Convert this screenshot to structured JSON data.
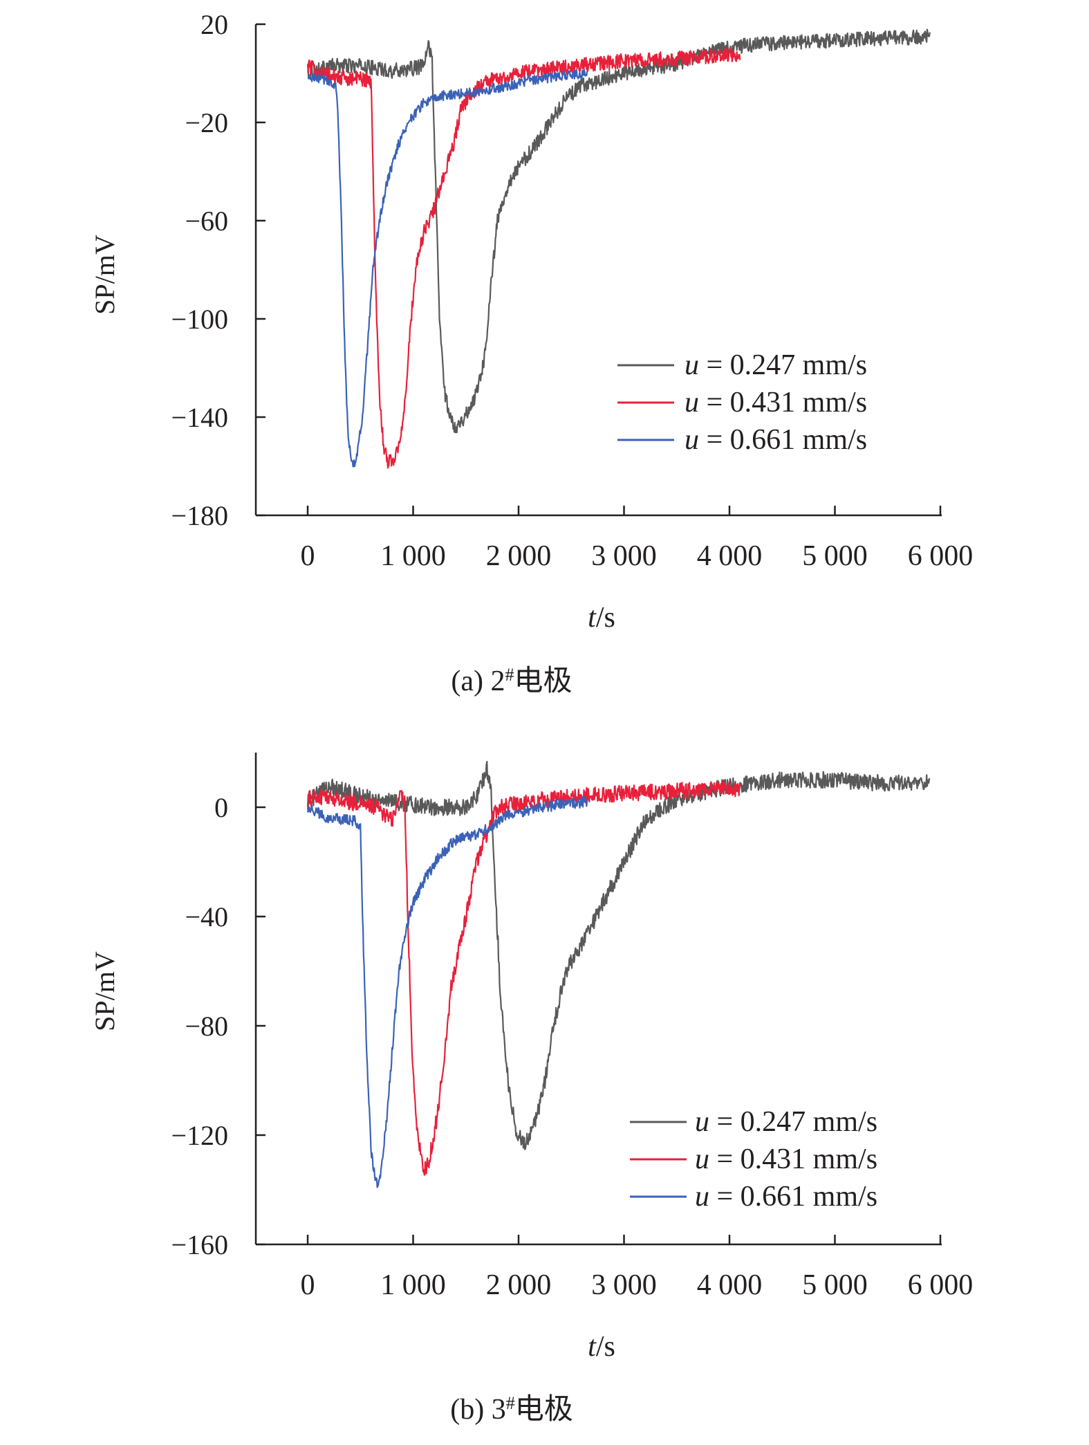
{
  "colors": {
    "series_0": "#595959",
    "series_1": "#e8203a",
    "series_2": "#3a62b6",
    "axis": "#231f20"
  },
  "chart_data": [
    {
      "type": "line",
      "caption": "(a) 2#电极",
      "caption_prefix": "(a) 2",
      "caption_sup": "#",
      "caption_suffix": "电极",
      "xlabel_italic": "t",
      "xlabel_unit": "/s",
      "ylabel": "SP/mV",
      "xlim": [
        -500,
        6000
      ],
      "ylim": [
        -180,
        20
      ],
      "x_ticks": [
        0,
        1000,
        2000,
        3000,
        4000,
        5000,
        6000
      ],
      "x_tick_labels": [
        "0",
        "1 000",
        "2 000",
        "3 000",
        "4 000",
        "5 000",
        "6 000"
      ],
      "y_ticks": [
        20,
        -20,
        -60,
        -100,
        -140,
        -180
      ],
      "y_tick_labels": [
        "20",
        "−20",
        "−60",
        "−100",
        "−140",
        "−180"
      ],
      "legend_position": "right",
      "series": [
        {
          "name": "u = 0.247 mm/s",
          "name_italic": "u",
          "name_rest": " = 0.247 mm/s",
          "noise": 3,
          "points": [
            [
              0,
              0
            ],
            [
              200,
              3
            ],
            [
              500,
              3
            ],
            [
              800,
              1
            ],
            [
              1000,
              2
            ],
            [
              1100,
              3
            ],
            [
              1150,
              12
            ],
            [
              1180,
              5
            ],
            [
              1210,
              -40
            ],
            [
              1250,
              -100
            ],
            [
              1300,
              -130
            ],
            [
              1350,
              -140
            ],
            [
              1400,
              -144
            ],
            [
              1450,
              -142
            ],
            [
              1520,
              -138
            ],
            [
              1600,
              -130
            ],
            [
              1680,
              -115
            ],
            [
              1740,
              -85
            ],
            [
              1800,
              -60
            ],
            [
              1900,
              -45
            ],
            [
              2000,
              -38
            ],
            [
              2150,
              -30
            ],
            [
              2300,
              -20
            ],
            [
              2450,
              -10
            ],
            [
              2600,
              -5
            ],
            [
              3000,
              0
            ],
            [
              3500,
              4
            ],
            [
              3900,
              10
            ],
            [
              4300,
              12
            ],
            [
              4800,
              13
            ],
            [
              5300,
              14
            ],
            [
              5900,
              15
            ]
          ]
        },
        {
          "name": "u = 0.431 mm/s",
          "name_italic": "u",
          "name_rest": " = 0.431 mm/s",
          "noise": 3,
          "points": [
            [
              0,
              3
            ],
            [
              150,
              0
            ],
            [
              300,
              -2
            ],
            [
              500,
              -2
            ],
            [
              600,
              -3
            ],
            [
              610,
              -20
            ],
            [
              640,
              -80
            ],
            [
              680,
              -130
            ],
            [
              720,
              -152
            ],
            [
              760,
              -158
            ],
            [
              820,
              -157
            ],
            [
              880,
              -150
            ],
            [
              940,
              -125
            ],
            [
              980,
              -100
            ],
            [
              1030,
              -78
            ],
            [
              1100,
              -65
            ],
            [
              1200,
              -55
            ],
            [
              1300,
              -40
            ],
            [
              1380,
              -30
            ],
            [
              1450,
              -15
            ],
            [
              1550,
              -8
            ],
            [
              1700,
              -3
            ],
            [
              2000,
              0
            ],
            [
              2500,
              3
            ],
            [
              3000,
              5
            ],
            [
              3500,
              6
            ],
            [
              4100,
              8
            ]
          ]
        },
        {
          "name": "u = 0.661 mm/s",
          "name_italic": "u",
          "name_rest": " = 0.661 mm/s",
          "noise": 2,
          "points": [
            [
              0,
              -2
            ],
            [
              100,
              -2
            ],
            [
              200,
              -3
            ],
            [
              270,
              -6
            ],
            [
              290,
              -20
            ],
            [
              320,
              -60
            ],
            [
              350,
              -110
            ],
            [
              380,
              -145
            ],
            [
              410,
              -157
            ],
            [
              430,
              -160
            ],
            [
              470,
              -155
            ],
            [
              520,
              -140
            ],
            [
              570,
              -110
            ],
            [
              620,
              -80
            ],
            [
              680,
              -60
            ],
            [
              750,
              -45
            ],
            [
              850,
              -30
            ],
            [
              950,
              -20
            ],
            [
              1100,
              -12
            ],
            [
              1300,
              -9
            ],
            [
              1500,
              -8
            ],
            [
              1800,
              -6
            ],
            [
              2100,
              -3
            ],
            [
              2400,
              -1
            ],
            [
              2650,
              0
            ]
          ]
        }
      ]
    },
    {
      "type": "line",
      "caption": "(b) 3#电极",
      "caption_prefix": "(b) 3",
      "caption_sup": "#",
      "caption_suffix": "电极",
      "xlabel_italic": "t",
      "xlabel_unit": "/s",
      "ylabel": "SP/mV",
      "xlim": [
        -500,
        6000
      ],
      "ylim": [
        -160,
        20
      ],
      "x_ticks": [
        0,
        1000,
        2000,
        3000,
        4000,
        5000,
        6000
      ],
      "x_tick_labels": [
        "0",
        "1 000",
        "2 000",
        "3 000",
        "4 000",
        "5 000",
        "6 000"
      ],
      "y_ticks": [
        0,
        -40,
        -80,
        -120,
        -160
      ],
      "y_tick_labels": [
        "0",
        "−40",
        "−80",
        "−120",
        "−160"
      ],
      "legend_position": "bottom-right",
      "series": [
        {
          "name": "u = 0.247 mm/s",
          "name_italic": "u",
          "name_rest": " = 0.247 mm/s",
          "noise": 3,
          "points": [
            [
              0,
              2
            ],
            [
              200,
              8
            ],
            [
              500,
              4
            ],
            [
              800,
              2
            ],
            [
              1200,
              0
            ],
            [
              1500,
              0
            ],
            [
              1620,
              5
            ],
            [
              1700,
              14
            ],
            [
              1740,
              5
            ],
            [
              1780,
              -30
            ],
            [
              1830,
              -70
            ],
            [
              1900,
              -100
            ],
            [
              1970,
              -118
            ],
            [
              2050,
              -123
            ],
            [
              2130,
              -118
            ],
            [
              2230,
              -105
            ],
            [
              2330,
              -80
            ],
            [
              2450,
              -60
            ],
            [
              2600,
              -50
            ],
            [
              2800,
              -35
            ],
            [
              3000,
              -20
            ],
            [
              3200,
              -5
            ],
            [
              3500,
              3
            ],
            [
              4000,
              8
            ],
            [
              4500,
              10
            ],
            [
              5000,
              10
            ],
            [
              5300,
              9
            ],
            [
              5900,
              9
            ]
          ]
        },
        {
          "name": "u = 0.431 mm/s",
          "name_italic": "u",
          "name_rest": " = 0.431 mm/s",
          "noise": 3,
          "points": [
            [
              0,
              3
            ],
            [
              150,
              4
            ],
            [
              400,
              2
            ],
            [
              650,
              0
            ],
            [
              800,
              -5
            ],
            [
              880,
              5
            ],
            [
              920,
              3
            ],
            [
              950,
              -40
            ],
            [
              990,
              -90
            ],
            [
              1040,
              -120
            ],
            [
              1100,
              -133
            ],
            [
              1150,
              -130
            ],
            [
              1220,
              -115
            ],
            [
              1300,
              -90
            ],
            [
              1360,
              -65
            ],
            [
              1420,
              -55
            ],
            [
              1500,
              -40
            ],
            [
              1600,
              -20
            ],
            [
              1700,
              -10
            ],
            [
              1800,
              0
            ],
            [
              2100,
              2
            ],
            [
              2500,
              4
            ],
            [
              3000,
              5
            ],
            [
              3500,
              6
            ],
            [
              4100,
              7
            ]
          ]
        },
        {
          "name": "u = 0.661 mm/s",
          "name_italic": "u",
          "name_rest": " = 0.661 mm/s",
          "noise": 2,
          "points": [
            [
              0,
              0
            ],
            [
              200,
              -4
            ],
            [
              450,
              -5
            ],
            [
              500,
              -8
            ],
            [
              520,
              -40
            ],
            [
              560,
              -90
            ],
            [
              600,
              -125
            ],
            [
              650,
              -138
            ],
            [
              690,
              -135
            ],
            [
              740,
              -118
            ],
            [
              800,
              -90
            ],
            [
              860,
              -62
            ],
            [
              930,
              -45
            ],
            [
              1000,
              -35
            ],
            [
              1100,
              -27
            ],
            [
              1250,
              -18
            ],
            [
              1400,
              -12
            ],
            [
              1600,
              -10
            ],
            [
              1750,
              -7
            ],
            [
              1900,
              -3
            ],
            [
              2200,
              0
            ],
            [
              2650,
              2
            ]
          ]
        }
      ]
    }
  ]
}
